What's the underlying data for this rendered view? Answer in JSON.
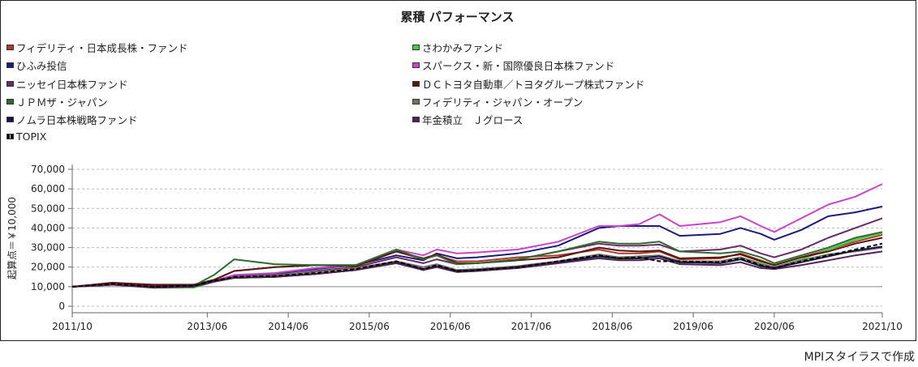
{
  "footer": {
    "credit": "MPIスタイラスで作成"
  },
  "chart_data": {
    "type": "line",
    "title": "累積 パフォーマンス",
    "ylabel": "起算点＝￥10,000",
    "xlabel": "",
    "ylim": [
      0,
      70000
    ],
    "yticks": [
      0,
      10000,
      20000,
      30000,
      40000,
      50000,
      60000,
      70000
    ],
    "ytick_labels": [
      "0",
      "10,000",
      "20,000",
      "30,000",
      "40,000",
      "50,000",
      "60,000",
      "70,000"
    ],
    "xlim_months_since_2011_10": [
      0,
      120
    ],
    "xticks": [
      {
        "m": 0,
        "label": "2011/10"
      },
      {
        "m": 20,
        "label": "2013/06"
      },
      {
        "m": 32,
        "label": "2014/06"
      },
      {
        "m": 44,
        "label": "2015/06"
      },
      {
        "m": 56,
        "label": "2016/06"
      },
      {
        "m": 68,
        "label": "2017/06"
      },
      {
        "m": 80,
        "label": "2018/06"
      },
      {
        "m": 92,
        "label": "2019/06"
      },
      {
        "m": 104,
        "label": "2020/06"
      },
      {
        "m": 120,
        "label": "2021/10"
      }
    ],
    "grid": true,
    "legend_position": "top",
    "x": [
      0,
      6,
      12,
      18,
      21,
      24,
      30,
      36,
      42,
      48,
      52,
      54,
      57,
      60,
      66,
      72,
      78,
      81,
      84,
      87,
      90,
      96,
      99,
      102,
      104,
      108,
      112,
      116,
      120
    ],
    "series": [
      {
        "name": "フィデリティ・日本成長株・ファンド",
        "color": "#b03a2e",
        "values": [
          10000,
          12000,
          10500,
          11000,
          13500,
          18000,
          20000,
          21000,
          21000,
          28000,
          24000,
          26000,
          23000,
          23000,
          25000,
          26000,
          29000,
          27000,
          27000,
          28000,
          24000,
          24500,
          27000,
          23500,
          21000,
          25000,
          29000,
          33000,
          36500
        ]
      },
      {
        "name": "さわかみファンド",
        "color": "#3ecf3e",
        "values": [
          10000,
          11000,
          9500,
          9500,
          12500,
          14500,
          15000,
          16500,
          18500,
          22000,
          18500,
          20000,
          17500,
          18000,
          19500,
          22000,
          25000,
          24000,
          24500,
          25500,
          22000,
          23000,
          25000,
          22000,
          20000,
          24000,
          29000,
          34000,
          37500
        ]
      },
      {
        "name": "ひふみ投信",
        "color": "#1c1c78",
        "values": [
          10000,
          11000,
          10000,
          10500,
          13000,
          15500,
          16500,
          19000,
          21000,
          26000,
          23500,
          27000,
          24500,
          25000,
          27000,
          31000,
          40000,
          41000,
          41000,
          41000,
          36000,
          37000,
          40000,
          37000,
          34000,
          39000,
          46000,
          48000,
          51000
        ]
      },
      {
        "name": "スパークス・新・国際優良日本株ファンド",
        "color": "#c845c8",
        "values": [
          10000,
          11500,
          10000,
          10500,
          13000,
          16000,
          17000,
          19500,
          21000,
          29000,
          26000,
          29000,
          27000,
          27500,
          29000,
          33000,
          41000,
          41000,
          42000,
          47000,
          41000,
          43000,
          46000,
          41000,
          38000,
          45000,
          52000,
          56000,
          62500
        ]
      },
      {
        "name": "ニッセイ日本株ファンド",
        "color": "#6a2a6a",
        "values": [
          10000,
          11000,
          10000,
          10500,
          13000,
          15000,
          15500,
          18000,
          20000,
          25000,
          22000,
          24000,
          21500,
          22000,
          24000,
          28000,
          32000,
          31000,
          31000,
          31500,
          28000,
          29000,
          31000,
          27000,
          25000,
          29000,
          35000,
          40000,
          45000
        ]
      },
      {
        "name": "ＤＣトヨタ自動車／トヨタグループ株式ファンド",
        "color": "#5a1515",
        "values": [
          10000,
          12000,
          11000,
          11000,
          13500,
          18000,
          20000,
          21000,
          20500,
          28000,
          24500,
          26500,
          22000,
          22000,
          23500,
          25000,
          30000,
          28500,
          28000,
          28500,
          24500,
          25000,
          26500,
          23000,
          21000,
          25000,
          28000,
          32000,
          35000
        ]
      },
      {
        "name": "ＪＰＭザ・ジャパン",
        "color": "#2e6b2e",
        "values": [
          10000,
          11000,
          10000,
          10500,
          16000,
          24000,
          21500,
          21000,
          21000,
          29000,
          24000,
          26000,
          21500,
          22000,
          24000,
          28000,
          33000,
          32000,
          32000,
          33000,
          28000,
          27000,
          28000,
          25000,
          22000,
          26000,
          30000,
          35000,
          38000
        ]
      },
      {
        "name": "フィデリティ・ジャパン・オープン",
        "color": "#737360",
        "values": [
          10000,
          11000,
          10000,
          10500,
          13000,
          15000,
          16000,
          17500,
          19500,
          23000,
          20000,
          21500,
          18500,
          19000,
          20500,
          23000,
          26500,
          25000,
          25500,
          26000,
          23000,
          23000,
          25000,
          21500,
          20000,
          23500,
          26500,
          28000,
          30000
        ]
      },
      {
        "name": "ノムラ日本株戦略ファンド",
        "color": "#15154a",
        "values": [
          10000,
          11000,
          10000,
          10500,
          13000,
          14500,
          15000,
          16500,
          18500,
          22500,
          19000,
          20500,
          18000,
          18500,
          20000,
          22500,
          25500,
          24500,
          24500,
          25500,
          22500,
          22000,
          24000,
          20500,
          19500,
          22500,
          25500,
          28500,
          30500
        ]
      },
      {
        "name": "年金積立　Ｊグロース",
        "color": "#552055",
        "values": [
          10000,
          11000,
          9500,
          10000,
          12500,
          14500,
          15000,
          16500,
          18500,
          22000,
          18500,
          20000,
          17500,
          18000,
          19500,
          22000,
          24500,
          23500,
          23500,
          24500,
          21500,
          21000,
          22500,
          19500,
          19000,
          21000,
          23500,
          26000,
          28000
        ]
      },
      {
        "name": "TOPIX",
        "color": "#000000",
        "dashed": true,
        "values": [
          10000,
          11500,
          10000,
          10500,
          13000,
          15000,
          15500,
          17000,
          19000,
          23000,
          19000,
          21000,
          18000,
          18500,
          20000,
          23000,
          26000,
          24500,
          25000,
          23000,
          23000,
          22500,
          24500,
          21000,
          19500,
          23000,
          26000,
          29000,
          32000
        ]
      }
    ]
  }
}
